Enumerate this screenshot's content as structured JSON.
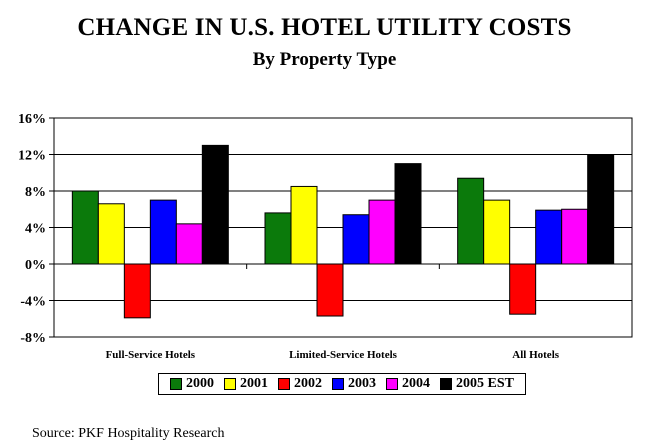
{
  "chart_data": {
    "type": "bar",
    "title": "CHANGE IN U.S. HOTEL UTILITY COSTS",
    "subtitle": "By Property Type",
    "categories": [
      "Full-Service Hotels",
      "Limited-Service Hotels",
      "All Hotels"
    ],
    "series": [
      {
        "name": "2000",
        "color": "#0b7a0b",
        "values": [
          8.0,
          5.6,
          9.4
        ]
      },
      {
        "name": "2001",
        "color": "#ffff00",
        "values": [
          6.6,
          8.5,
          7.0
        ]
      },
      {
        "name": "2002",
        "color": "#ff0000",
        "values": [
          -5.9,
          -5.7,
          -5.5
        ]
      },
      {
        "name": "2003",
        "color": "#0000ff",
        "values": [
          7.0,
          5.4,
          5.9
        ]
      },
      {
        "name": "2004",
        "color": "#ff00ff",
        "values": [
          4.4,
          7.0,
          6.0
        ]
      },
      {
        "name": "2005 EST",
        "color": "#000000",
        "values": [
          13.0,
          11.0,
          12.0
        ]
      }
    ],
    "ylim": [
      -8,
      16
    ],
    "yticks": [
      "16%",
      "12%",
      "8%",
      "4%",
      "0%",
      "-4%",
      "-8%"
    ],
    "ytick_values": [
      16,
      12,
      8,
      4,
      0,
      -4,
      -8
    ],
    "grid": true,
    "legend_position": "bottom",
    "source": "Source: PKF Hospitality Research"
  }
}
